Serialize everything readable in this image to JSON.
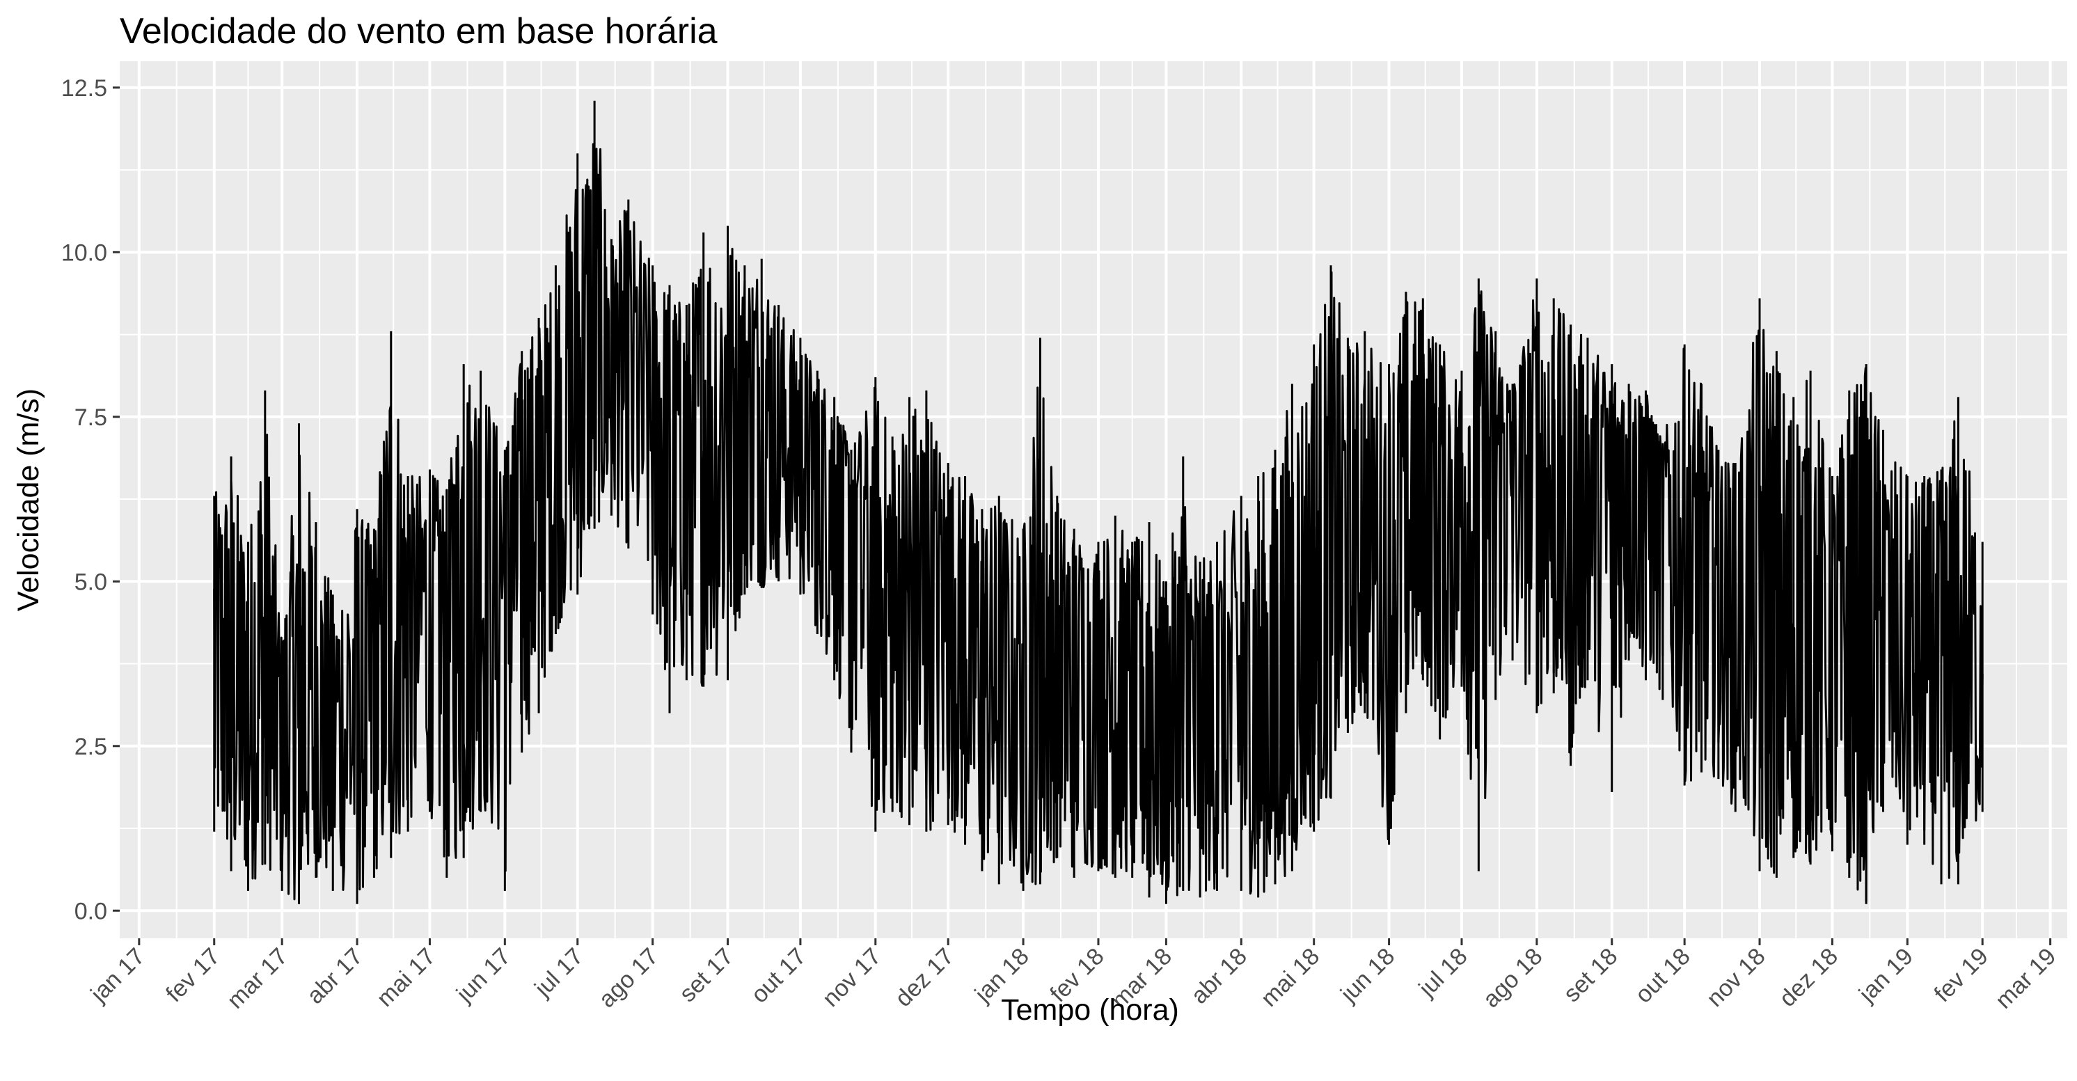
{
  "chart_data": {
    "type": "line",
    "title": "Velocidade do vento em base horária",
    "xlabel": "Tempo (hora)",
    "ylabel": "Velocidade (m/s)",
    "ylim": [
      -0.42,
      12.9
    ],
    "xlim": [
      "2016-12-24",
      "2019-03-08"
    ],
    "grid": true,
    "legend": "none",
    "colors": {
      "panel": "#ebebeb",
      "grid": "#ffffff",
      "line": "#000000",
      "ticks": "#333333",
      "tick_text": "#4d4d4d"
    },
    "y_ticks": [
      {
        "value": 0,
        "label": "0.0"
      },
      {
        "value": 2.5,
        "label": "2.5"
      },
      {
        "value": 5,
        "label": "5.0"
      },
      {
        "value": 7.5,
        "label": "7.5"
      },
      {
        "value": 10,
        "label": "10.0"
      },
      {
        "value": 12.5,
        "label": "12.5"
      }
    ],
    "x_ticks": [
      {
        "date": "2017-01-01",
        "label": "jan 17"
      },
      {
        "date": "2017-02-01",
        "label": "fev 17"
      },
      {
        "date": "2017-03-01",
        "label": "mar 17"
      },
      {
        "date": "2017-04-01",
        "label": "abr 17"
      },
      {
        "date": "2017-05-01",
        "label": "mai 17"
      },
      {
        "date": "2017-06-01",
        "label": "jun 17"
      },
      {
        "date": "2017-07-01",
        "label": "jul 17"
      },
      {
        "date": "2017-08-01",
        "label": "ago 17"
      },
      {
        "date": "2017-09-01",
        "label": "set 17"
      },
      {
        "date": "2017-10-01",
        "label": "out 17"
      },
      {
        "date": "2017-11-01",
        "label": "nov 17"
      },
      {
        "date": "2017-12-01",
        "label": "dez 17"
      },
      {
        "date": "2018-01-01",
        "label": "jan 18"
      },
      {
        "date": "2018-02-01",
        "label": "fev 18"
      },
      {
        "date": "2018-03-01",
        "label": "mar 18"
      },
      {
        "date": "2018-04-01",
        "label": "abr 18"
      },
      {
        "date": "2018-05-01",
        "label": "mai 18"
      },
      {
        "date": "2018-06-01",
        "label": "jun 18"
      },
      {
        "date": "2018-07-01",
        "label": "jul 18"
      },
      {
        "date": "2018-08-01",
        "label": "ago 18"
      },
      {
        "date": "2018-09-01",
        "label": "set 18"
      },
      {
        "date": "2018-10-01",
        "label": "out 18"
      },
      {
        "date": "2018-11-01",
        "label": "nov 18"
      },
      {
        "date": "2018-12-01",
        "label": "dez 18"
      },
      {
        "date": "2019-01-01",
        "label": "jan 19"
      },
      {
        "date": "2019-02-01",
        "label": "fev 19"
      },
      {
        "date": "2019-03-01",
        "label": "mar 19"
      }
    ],
    "series": [
      {
        "x": [
          "2017-02-01",
          "2017-02-08",
          "2017-02-15",
          "2017-02-22",
          "2017-03-01",
          "2017-03-08",
          "2017-03-15",
          "2017-03-22",
          "2017-04-01",
          "2017-04-08",
          "2017-04-15",
          "2017-04-22",
          "2017-05-01",
          "2017-05-08",
          "2017-05-15",
          "2017-05-22",
          "2017-06-01",
          "2017-06-08",
          "2017-06-15",
          "2017-06-22",
          "2017-07-01",
          "2017-07-08",
          "2017-07-15",
          "2017-07-22",
          "2017-08-01",
          "2017-08-08",
          "2017-08-15",
          "2017-08-22",
          "2017-09-01",
          "2017-09-08",
          "2017-09-15",
          "2017-09-22",
          "2017-10-01",
          "2017-10-08",
          "2017-10-15",
          "2017-10-22",
          "2017-11-01",
          "2017-11-08",
          "2017-11-15",
          "2017-11-22",
          "2017-12-01",
          "2017-12-08",
          "2017-12-15",
          "2017-12-22",
          "2018-01-01",
          "2018-01-08",
          "2018-01-15",
          "2018-01-22",
          "2018-02-01",
          "2018-02-08",
          "2018-02-15",
          "2018-02-22",
          "2018-03-01",
          "2018-03-08",
          "2018-03-15",
          "2018-03-22",
          "2018-04-01",
          "2018-04-08",
          "2018-04-15",
          "2018-04-22",
          "2018-05-01",
          "2018-05-08",
          "2018-05-15",
          "2018-05-22",
          "2018-06-01",
          "2018-06-08",
          "2018-06-15",
          "2018-06-22",
          "2018-07-01",
          "2018-07-08",
          "2018-07-15",
          "2018-07-22",
          "2018-08-01",
          "2018-08-08",
          "2018-08-15",
          "2018-08-22",
          "2018-09-01",
          "2018-09-08",
          "2018-09-15",
          "2018-09-22",
          "2018-10-01",
          "2018-10-08",
          "2018-10-15",
          "2018-10-22",
          "2018-11-01",
          "2018-11-08",
          "2018-11-15",
          "2018-11-22",
          "2018-12-01",
          "2018-12-08",
          "2018-12-15",
          "2018-12-22",
          "2019-01-01",
          "2019-01-08",
          "2019-01-15",
          "2019-01-22",
          "2019-02-01"
        ],
        "y": [
          3.5,
          3.2,
          3.4,
          3.3,
          3.0,
          3.1,
          2.8,
          2.7,
          3.2,
          3.6,
          4.2,
          4.6,
          4.8,
          5.0,
          5.3,
          5.8,
          6.2,
          6.6,
          6.9,
          7.2,
          7.6,
          8.0,
          8.3,
          8.0,
          7.6,
          7.2,
          6.9,
          7.3,
          7.8,
          8.0,
          7.8,
          7.6,
          7.4,
          7.0,
          6.7,
          6.4,
          4.9,
          4.6,
          4.3,
          4.8,
          5.0,
          4.4,
          4.0,
          3.8,
          3.7,
          3.6,
          3.5,
          3.9,
          4.0,
          3.2,
          3.0,
          3.1,
          2.9,
          2.6,
          2.7,
          2.8,
          2.9,
          2.6,
          2.7,
          3.5,
          4.4,
          4.9,
          5.2,
          5.6,
          5.8,
          6.1,
          6.3,
          6.5,
          6.5,
          6.6,
          6.9,
          7.1,
          6.6,
          6.4,
          5.9,
          6.2,
          6.8,
          7.0,
          7.2,
          6.5,
          5.6,
          5.2,
          5.0,
          4.9,
          4.3,
          3.9,
          3.8,
          4.0,
          4.2,
          4.0,
          4.6,
          3.8,
          3.7,
          3.6,
          3.6,
          3.5,
          3.6
        ],
        "min": [
          1.2,
          0.6,
          0.3,
          0.7,
          0.3,
          0.1,
          0.5,
          0.3,
          0.1,
          0.5,
          0.8,
          1.2,
          1.5,
          0.5,
          0.8,
          1.5,
          0.3,
          2.4,
          3.0,
          4.2,
          4.8,
          5.8,
          6.0,
          5.5,
          4.5,
          3.0,
          3.5,
          3.4,
          3.5,
          4.8,
          4.9,
          5.0,
          4.8,
          4.2,
          3.5,
          2.4,
          1.2,
          1.5,
          1.3,
          1.2,
          1.3,
          1.0,
          0.6,
          0.4,
          0.3,
          0.4,
          0.8,
          0.5,
          0.6,
          0.5,
          0.5,
          0.2,
          0.1,
          0.3,
          0.2,
          0.3,
          0.3,
          0.2,
          0.4,
          0.6,
          1.2,
          1.7,
          2.7,
          3.0,
          1.0,
          3.0,
          3.5,
          2.6,
          3.4,
          0.6,
          3.2,
          3.8,
          3.0,
          3.3,
          2.2,
          3.5,
          1.8,
          3.8,
          3.5,
          3.2,
          1.9,
          2.1,
          2.0,
          1.5,
          0.6,
          0.5,
          0.8,
          0.7,
          0.9,
          0.5,
          0.1,
          1.5,
          1.0,
          1.0,
          0.4,
          0.4,
          1.5
        ],
        "max": [
          6.3,
          6.9,
          5.6,
          7.9,
          4.1,
          7.4,
          5.9,
          4.8,
          6.1,
          5.8,
          8.8,
          6.6,
          6.7,
          6.4,
          8.3,
          8.2,
          7.0,
          8.5,
          9.0,
          9.8,
          11.5,
          12.3,
          10.2,
          10.8,
          9.8,
          9.5,
          9.2,
          10.3,
          10.4,
          9.8,
          9.9,
          9.2,
          8.7,
          8.2,
          7.8,
          7.0,
          8.1,
          7.2,
          7.8,
          7.9,
          6.8,
          6.6,
          6.1,
          6.3,
          5.8,
          8.7,
          6.3,
          5.8,
          5.6,
          6.0,
          5.6,
          5.9,
          5.0,
          6.9,
          5.3,
          5.6,
          6.3,
          6.6,
          7.0,
          8.0,
          8.6,
          9.8,
          8.7,
          8.8,
          8.3,
          9.4,
          9.3,
          8.6,
          8.2,
          9.6,
          8.8,
          8.0,
          9.6,
          9.3,
          8.9,
          8.7,
          8.3,
          8.0,
          7.9,
          7.1,
          8.6,
          8.0,
          7.0,
          6.8,
          9.3,
          8.5,
          7.8,
          8.2,
          6.6,
          7.9,
          8.3,
          7.3,
          6.6,
          6.6,
          6.7,
          7.8,
          5.6
        ]
      }
    ]
  }
}
